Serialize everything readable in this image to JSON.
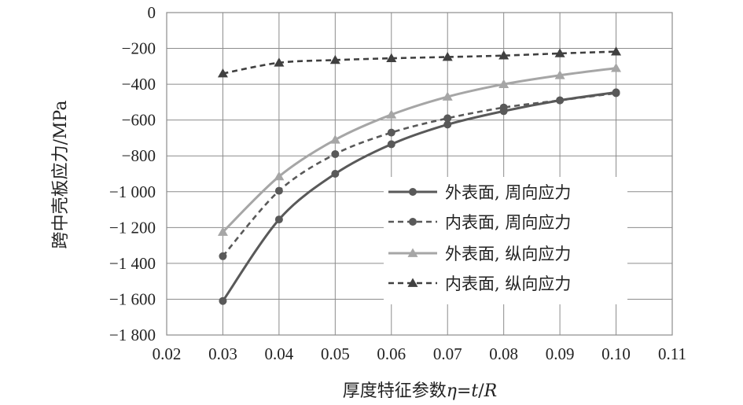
{
  "chart_data": {
    "type": "line",
    "xlabel_prefix": "厚度特征参数",
    "xlabel_eta": "η",
    "xlabel_eq": "=",
    "xlabel_t": "t",
    "xlabel_slash": "/",
    "xlabel_R": "R",
    "ylabel": "跨中壳板应力/MPa",
    "xlim": [
      0.02,
      0.11
    ],
    "ylim": [
      -1800,
      0
    ],
    "x_ticks": [
      0.02,
      0.03,
      0.04,
      0.05,
      0.06,
      0.07,
      0.08,
      0.09,
      0.1,
      0.11
    ],
    "x_tick_labels": [
      "0.02",
      "0.03",
      "0.04",
      "0.05",
      "0.06",
      "0.07",
      "0.08",
      "0.09",
      "0.10",
      "0.11"
    ],
    "y_ticks": [
      0,
      -200,
      -400,
      -600,
      -800,
      -1000,
      -1200,
      -1400,
      -1600,
      -1800
    ],
    "y_tick_labels": [
      "0",
      "−200",
      "−400",
      "−600",
      "−800",
      "−1 000",
      "−1 200",
      "−1 400",
      "−1 600",
      "−1 800"
    ],
    "grid": true,
    "legend_position": "center-right",
    "x": [
      0.03,
      0.04,
      0.05,
      0.06,
      0.07,
      0.08,
      0.09,
      0.1
    ],
    "series": [
      {
        "name": "外表面, 周向应力",
        "values": [
          -1610,
          -1155,
          -900,
          -735,
          -625,
          -550,
          -490,
          -445
        ],
        "color": "#595959",
        "dashed": false,
        "marker": "circle"
      },
      {
        "name": "内表面, 周向应力",
        "values": [
          -1360,
          -995,
          -790,
          -670,
          -590,
          -530,
          -490,
          -450
        ],
        "color": "#595959",
        "dashed": true,
        "marker": "circle"
      },
      {
        "name": "外表面, 纵向应力",
        "values": [
          -1225,
          -915,
          -710,
          -570,
          -470,
          -400,
          -350,
          -310
        ],
        "color": "#a6a6a6",
        "dashed": false,
        "marker": "triangle"
      },
      {
        "name": "内表面, 纵向应力",
        "values": [
          -340,
          -280,
          -265,
          -255,
          -248,
          -240,
          -228,
          -218
        ],
        "color": "#404040",
        "dashed": true,
        "marker": "triangle"
      }
    ]
  }
}
